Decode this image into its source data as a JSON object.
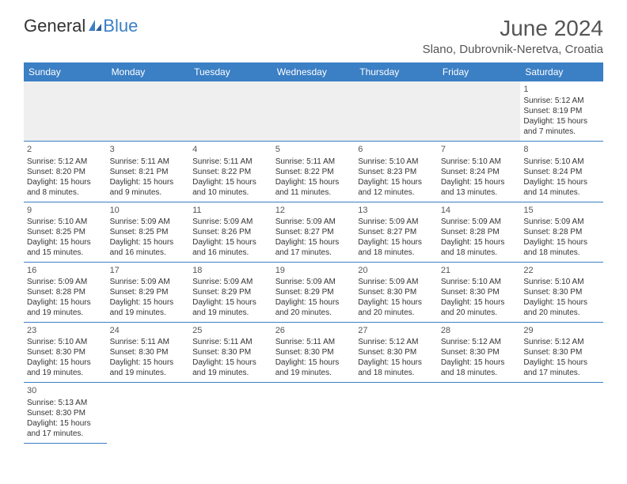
{
  "logo": {
    "part1": "General",
    "part2": "Blue"
  },
  "title": "June 2024",
  "location": "Slano, Dubrovnik-Neretva, Croatia",
  "colors": {
    "header_bg": "#3b7fc4",
    "header_text": "#ffffff",
    "border": "#3b7fc4",
    "text": "#333333",
    "title_text": "#555555",
    "blank_row_bg": "#efefef",
    "logo_blue": "#3b7fc4"
  },
  "weekdays": [
    "Sunday",
    "Monday",
    "Tuesday",
    "Wednesday",
    "Thursday",
    "Friday",
    "Saturday"
  ],
  "days": {
    "1": {
      "sunrise": "5:12 AM",
      "sunset": "8:19 PM",
      "daylight": "15 hours and 7 minutes."
    },
    "2": {
      "sunrise": "5:12 AM",
      "sunset": "8:20 PM",
      "daylight": "15 hours and 8 minutes."
    },
    "3": {
      "sunrise": "5:11 AM",
      "sunset": "8:21 PM",
      "daylight": "15 hours and 9 minutes."
    },
    "4": {
      "sunrise": "5:11 AM",
      "sunset": "8:22 PM",
      "daylight": "15 hours and 10 minutes."
    },
    "5": {
      "sunrise": "5:11 AM",
      "sunset": "8:22 PM",
      "daylight": "15 hours and 11 minutes."
    },
    "6": {
      "sunrise": "5:10 AM",
      "sunset": "8:23 PM",
      "daylight": "15 hours and 12 minutes."
    },
    "7": {
      "sunrise": "5:10 AM",
      "sunset": "8:24 PM",
      "daylight": "15 hours and 13 minutes."
    },
    "8": {
      "sunrise": "5:10 AM",
      "sunset": "8:24 PM",
      "daylight": "15 hours and 14 minutes."
    },
    "9": {
      "sunrise": "5:10 AM",
      "sunset": "8:25 PM",
      "daylight": "15 hours and 15 minutes."
    },
    "10": {
      "sunrise": "5:09 AM",
      "sunset": "8:25 PM",
      "daylight": "15 hours and 16 minutes."
    },
    "11": {
      "sunrise": "5:09 AM",
      "sunset": "8:26 PM",
      "daylight": "15 hours and 16 minutes."
    },
    "12": {
      "sunrise": "5:09 AM",
      "sunset": "8:27 PM",
      "daylight": "15 hours and 17 minutes."
    },
    "13": {
      "sunrise": "5:09 AM",
      "sunset": "8:27 PM",
      "daylight": "15 hours and 18 minutes."
    },
    "14": {
      "sunrise": "5:09 AM",
      "sunset": "8:28 PM",
      "daylight": "15 hours and 18 minutes."
    },
    "15": {
      "sunrise": "5:09 AM",
      "sunset": "8:28 PM",
      "daylight": "15 hours and 18 minutes."
    },
    "16": {
      "sunrise": "5:09 AM",
      "sunset": "8:28 PM",
      "daylight": "15 hours and 19 minutes."
    },
    "17": {
      "sunrise": "5:09 AM",
      "sunset": "8:29 PM",
      "daylight": "15 hours and 19 minutes."
    },
    "18": {
      "sunrise": "5:09 AM",
      "sunset": "8:29 PM",
      "daylight": "15 hours and 19 minutes."
    },
    "19": {
      "sunrise": "5:09 AM",
      "sunset": "8:29 PM",
      "daylight": "15 hours and 20 minutes."
    },
    "20": {
      "sunrise": "5:09 AM",
      "sunset": "8:30 PM",
      "daylight": "15 hours and 20 minutes."
    },
    "21": {
      "sunrise": "5:10 AM",
      "sunset": "8:30 PM",
      "daylight": "15 hours and 20 minutes."
    },
    "22": {
      "sunrise": "5:10 AM",
      "sunset": "8:30 PM",
      "daylight": "15 hours and 20 minutes."
    },
    "23": {
      "sunrise": "5:10 AM",
      "sunset": "8:30 PM",
      "daylight": "15 hours and 19 minutes."
    },
    "24": {
      "sunrise": "5:11 AM",
      "sunset": "8:30 PM",
      "daylight": "15 hours and 19 minutes."
    },
    "25": {
      "sunrise": "5:11 AM",
      "sunset": "8:30 PM",
      "daylight": "15 hours and 19 minutes."
    },
    "26": {
      "sunrise": "5:11 AM",
      "sunset": "8:30 PM",
      "daylight": "15 hours and 19 minutes."
    },
    "27": {
      "sunrise": "5:12 AM",
      "sunset": "8:30 PM",
      "daylight": "15 hours and 18 minutes."
    },
    "28": {
      "sunrise": "5:12 AM",
      "sunset": "8:30 PM",
      "daylight": "15 hours and 18 minutes."
    },
    "29": {
      "sunrise": "5:12 AM",
      "sunset": "8:30 PM",
      "daylight": "15 hours and 17 minutes."
    },
    "30": {
      "sunrise": "5:13 AM",
      "sunset": "8:30 PM",
      "daylight": "15 hours and 17 minutes."
    }
  },
  "labels": {
    "sunrise": "Sunrise: ",
    "sunset": "Sunset: ",
    "daylight": "Daylight: "
  }
}
